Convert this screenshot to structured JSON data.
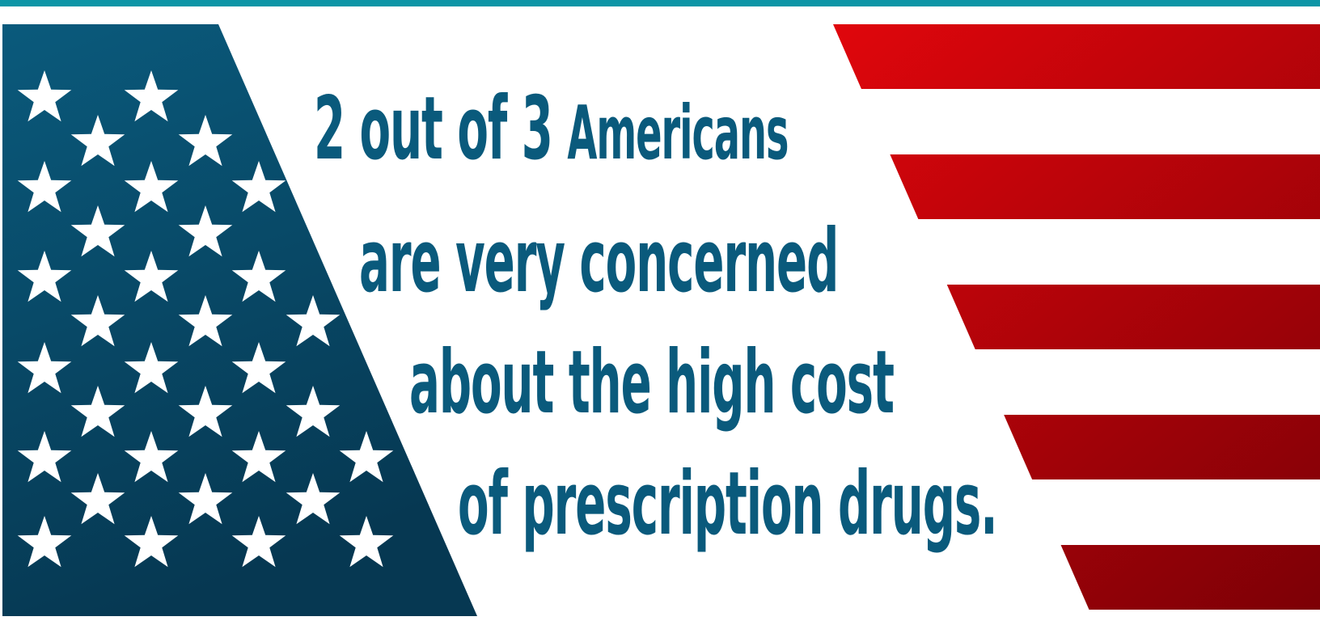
{
  "colors": {
    "top_bar": "#0d95a6",
    "canton_top": "#0a5a7c",
    "canton_bottom": "#063852",
    "stripe_red_light": "#e0060c",
    "stripe_red_dark": "#8a0008",
    "text": "#0a5a7c",
    "star": "#ffffff",
    "background": "#ffffff"
  },
  "headline": {
    "line1_part1": "2 out of 3 ",
    "line1_part2": "Americans",
    "line2": "are very concerned",
    "line3": "about the high cost",
    "line4": "of prescription drugs."
  },
  "decoration": {
    "canton_icon": "star-icon",
    "stripes": "red-stripes"
  }
}
